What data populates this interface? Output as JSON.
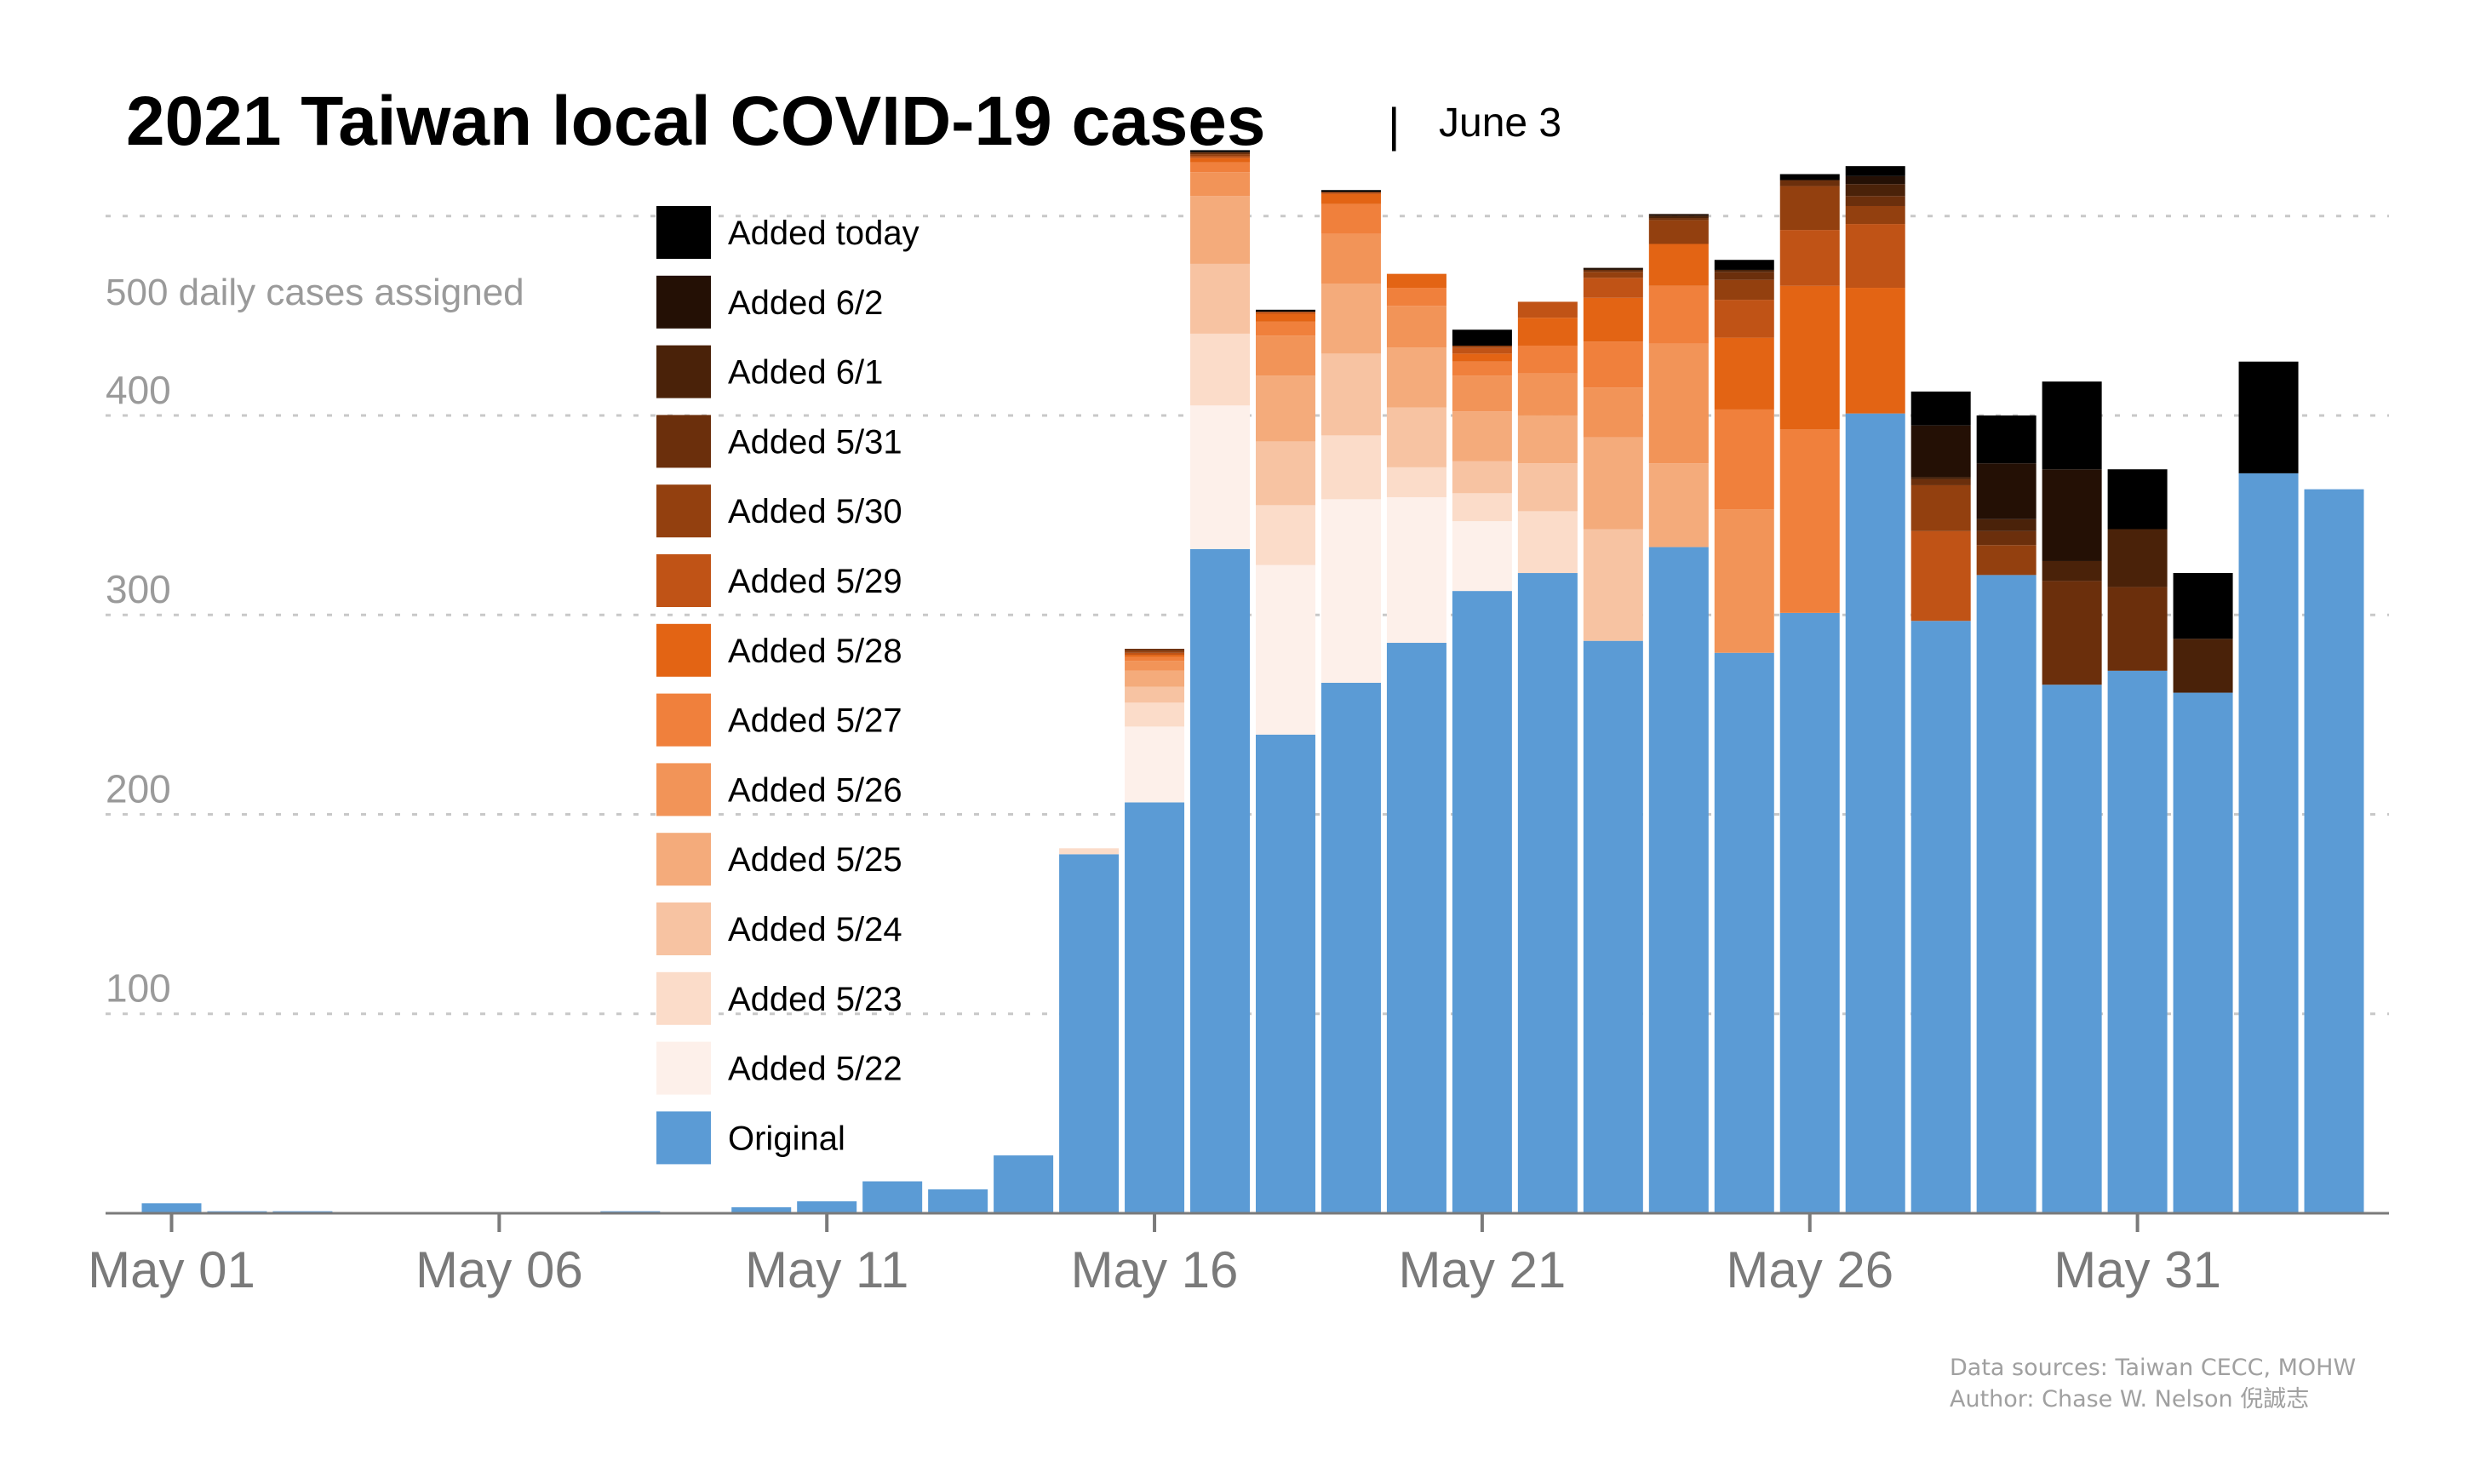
{
  "header": {
    "title": "2021 Taiwan local COVID-19 cases",
    "separator": "|",
    "date": "June 3"
  },
  "footer": {
    "line1": "Data sources: Taiwan CECC, MOHW",
    "line2": "Author: Chase W. Nelson 倪誠志"
  },
  "chart_data": {
    "type": "bar",
    "stacked": true,
    "title": "2021 Taiwan local COVID-19 cases",
    "ylabel": "500 daily cases assigned",
    "xlabel": "",
    "ylim": [
      0,
      540
    ],
    "yticks": [
      100,
      200,
      300,
      400,
      500
    ],
    "ytick_labels": [
      "100",
      "200",
      "300",
      "400",
      "500"
    ],
    "grid": true,
    "legend_position": "top-left (inside plot)",
    "xticks": [
      {
        "index": 0,
        "label": "May 01"
      },
      {
        "index": 5,
        "label": "May 06"
      },
      {
        "index": 10,
        "label": "May 11"
      },
      {
        "index": 15,
        "label": "May 16"
      },
      {
        "index": 20,
        "label": "May 21"
      },
      {
        "index": 25,
        "label": "May 26"
      },
      {
        "index": 30,
        "label": "May 31"
      }
    ],
    "categories": [
      "May 01",
      "May 02",
      "May 03",
      "May 04",
      "May 05",
      "May 06",
      "May 07",
      "May 08",
      "May 09",
      "May 10",
      "May 11",
      "May 12",
      "May 13",
      "May 14",
      "May 15",
      "May 16",
      "May 17",
      "May 18",
      "May 19",
      "May 20",
      "May 21",
      "May 22",
      "May 23",
      "May 24",
      "May 25",
      "May 26",
      "May 27",
      "May 28",
      "May 29",
      "May 30",
      "May 31",
      "Jun 01",
      "Jun 02",
      "Jun 03"
    ],
    "series": [
      {
        "name": "Original",
        "color": "#5b9bd5",
        "values": [
          5,
          1,
          1,
          0,
          0,
          0,
          0,
          1,
          0,
          3,
          6,
          16,
          12,
          29,
          180,
          206,
          333,
          240,
          266,
          286,
          312,
          321,
          287,
          334,
          281,
          301,
          401,
          297,
          320,
          265,
          272,
          261,
          371,
          363
        ]
      },
      {
        "name": "Added 5/22",
        "color": "#fdf0ea",
        "values": [
          0,
          0,
          0,
          0,
          0,
          0,
          0,
          0,
          0,
          0,
          0,
          0,
          0,
          0,
          0,
          38,
          72,
          85,
          92,
          73,
          35,
          0,
          0,
          0,
          0,
          0,
          0,
          0,
          0,
          0,
          0,
          0,
          0,
          0
        ]
      },
      {
        "name": "Added 5/23",
        "color": "#fbdcc9",
        "values": [
          0,
          0,
          0,
          0,
          0,
          0,
          0,
          0,
          0,
          0,
          0,
          0,
          0,
          0,
          3,
          12,
          36,
          30,
          32,
          15,
          14,
          31,
          0,
          0,
          0,
          0,
          0,
          0,
          0,
          0,
          0,
          0,
          0,
          0
        ]
      },
      {
        "name": "Added 5/24",
        "color": "#f7c3a2",
        "values": [
          0,
          0,
          0,
          0,
          0,
          0,
          0,
          0,
          0,
          0,
          0,
          0,
          0,
          0,
          0,
          8,
          35,
          32,
          41,
          30,
          16,
          24,
          56,
          0,
          0,
          0,
          0,
          0,
          0,
          0,
          0,
          0,
          0,
          0
        ]
      },
      {
        "name": "Added 5/25",
        "color": "#f4ab7b",
        "values": [
          0,
          0,
          0,
          0,
          0,
          0,
          0,
          0,
          0,
          0,
          0,
          0,
          0,
          0,
          0,
          8,
          34,
          33,
          35,
          30,
          25,
          24,
          46,
          42,
          0,
          0,
          0,
          0,
          0,
          0,
          0,
          0,
          0,
          0
        ]
      },
      {
        "name": "Added 5/26",
        "color": "#f29458",
        "values": [
          0,
          0,
          0,
          0,
          0,
          0,
          0,
          0,
          0,
          0,
          0,
          0,
          0,
          0,
          0,
          5,
          12,
          20,
          25,
          21,
          18,
          21,
          25,
          60,
          72,
          0,
          0,
          0,
          0,
          0,
          0,
          0,
          0,
          0
        ]
      },
      {
        "name": "Added 5/27",
        "color": "#f0803c",
        "values": [
          0,
          0,
          0,
          0,
          0,
          0,
          0,
          0,
          0,
          0,
          0,
          0,
          0,
          0,
          0,
          2,
          5,
          7,
          15,
          9,
          7,
          14,
          23,
          29,
          50,
          92,
          0,
          0,
          0,
          0,
          0,
          0,
          0,
          0
        ]
      },
      {
        "name": "Added 5/28",
        "color": "#e36414",
        "values": [
          0,
          0,
          0,
          0,
          0,
          0,
          0,
          0,
          0,
          0,
          0,
          0,
          0,
          0,
          0,
          1,
          2,
          4,
          5,
          7,
          4,
          14,
          22,
          21,
          36,
          72,
          63,
          0,
          0,
          0,
          0,
          0,
          0,
          0
        ]
      },
      {
        "name": "Added 5/29",
        "color": "#c05316",
        "values": [
          0,
          0,
          0,
          0,
          0,
          0,
          0,
          0,
          0,
          0,
          0,
          0,
          0,
          0,
          0,
          1,
          1,
          1,
          1,
          0,
          3,
          8,
          10,
          0,
          19,
          28,
          32,
          45,
          0,
          0,
          0,
          0,
          0,
          0
        ]
      },
      {
        "name": "Added 5/30",
        "color": "#93400f",
        "values": [
          0,
          0,
          0,
          0,
          0,
          0,
          0,
          0,
          0,
          0,
          0,
          0,
          0,
          0,
          0,
          1,
          1,
          0,
          0,
          0,
          1,
          0,
          3,
          12,
          10,
          22,
          9,
          23,
          15,
          0,
          0,
          0,
          0,
          0
        ]
      },
      {
        "name": "Added 5/31",
        "color": "#6b2f0c",
        "values": [
          0,
          0,
          0,
          0,
          0,
          0,
          0,
          0,
          0,
          0,
          0,
          0,
          0,
          0,
          0,
          1,
          1,
          0,
          0,
          0,
          0,
          0,
          1,
          1,
          4,
          3,
          5,
          3,
          7,
          52,
          42,
          0,
          0,
          0
        ]
      },
      {
        "name": "Added 6/1",
        "color": "#4a2209",
        "values": [
          0,
          0,
          0,
          0,
          0,
          0,
          0,
          0,
          0,
          0,
          0,
          0,
          0,
          0,
          0,
          0,
          0,
          0,
          0,
          0,
          0,
          0,
          0,
          1,
          1,
          0,
          6,
          1,
          6,
          10,
          29,
          27,
          0,
          0
        ]
      },
      {
        "name": "Added 6/2",
        "color": "#241005",
        "values": [
          0,
          0,
          0,
          0,
          0,
          0,
          0,
          0,
          0,
          0,
          0,
          0,
          0,
          0,
          0,
          0,
          0,
          0,
          0,
          0,
          0,
          0,
          1,
          1,
          0,
          0,
          4,
          26,
          28,
          46,
          0,
          0,
          0,
          0
        ]
      },
      {
        "name": "Added today",
        "color": "#000000",
        "values": [
          0,
          0,
          0,
          0,
          0,
          0,
          0,
          0,
          0,
          0,
          0,
          0,
          0,
          0,
          0,
          0,
          1,
          1,
          1,
          0,
          8,
          0,
          0,
          0,
          5,
          3,
          5,
          17,
          24,
          44,
          30,
          33,
          56,
          0
        ]
      }
    ]
  }
}
